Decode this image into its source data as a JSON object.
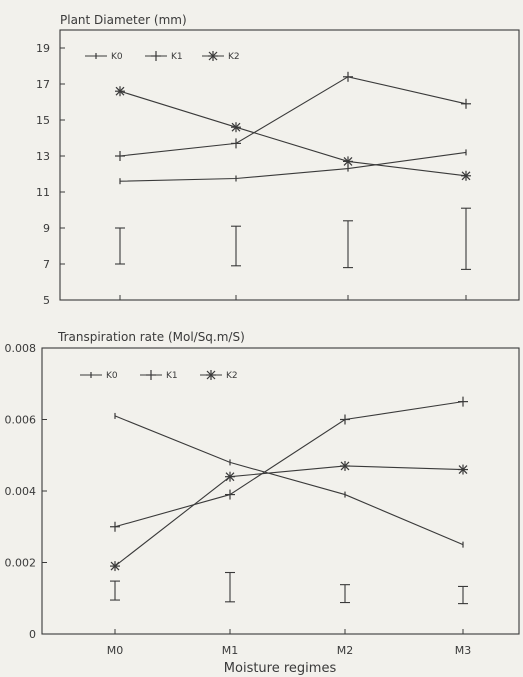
{
  "chart_data": [
    {
      "type": "line",
      "title": "Plant Diameter (mm)",
      "xlabel": "",
      "ylabel": "",
      "categories": [
        "M0",
        "M1",
        "M2",
        "M3"
      ],
      "ylim": [
        5,
        20
      ],
      "yticks": [
        5,
        7,
        9,
        11,
        13,
        15,
        17,
        19
      ],
      "series": [
        {
          "name": "K0",
          "marker": "tick",
          "values": [
            11.6,
            11.75,
            12.3,
            13.2
          ]
        },
        {
          "name": "K1",
          "marker": "plus",
          "values": [
            13.0,
            13.7,
            17.4,
            15.9
          ]
        },
        {
          "name": "K2",
          "marker": "asterisk",
          "values": [
            16.6,
            14.6,
            12.7,
            11.9
          ]
        }
      ],
      "error_bars": [
        [
          7.0,
          9.0
        ],
        [
          6.9,
          9.1
        ],
        [
          6.8,
          9.4
        ],
        [
          6.7,
          10.1
        ]
      ],
      "legend": "top-left",
      "grid": false
    },
    {
      "type": "line",
      "title": "Transpiration rate (Mol/Sq.m/S)",
      "xlabel": "Moisture regimes",
      "ylabel": "",
      "categories": [
        "M0",
        "M1",
        "M2",
        "M3"
      ],
      "ylim": [
        0,
        0.008
      ],
      "yticks": [
        0,
        0.002,
        0.004,
        0.006,
        0.008
      ],
      "ytick_labels": [
        "0",
        "0.002",
        "0.004",
        "0.006",
        "0.008"
      ],
      "series": [
        {
          "name": "K0",
          "marker": "tick",
          "values": [
            0.0061,
            0.0048,
            0.0039,
            0.0025
          ]
        },
        {
          "name": "K1",
          "marker": "plus",
          "values": [
            0.003,
            0.0039,
            0.006,
            0.0065
          ]
        },
        {
          "name": "K2",
          "marker": "asterisk",
          "values": [
            0.0019,
            0.0044,
            0.0047,
            0.0046
          ]
        }
      ],
      "error_bars": [
        [
          0.00095,
          0.00148
        ],
        [
          0.0009,
          0.00172
        ],
        [
          0.00088,
          0.00138
        ],
        [
          0.00085,
          0.00133
        ]
      ],
      "legend": "top-left",
      "grid": false
    }
  ],
  "colors": {
    "ink": "#3a3a3a",
    "background": "#f2f1ec"
  }
}
